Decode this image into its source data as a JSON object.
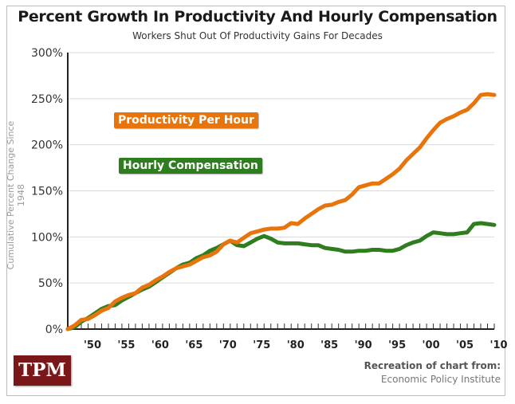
{
  "chart_data": {
    "type": "line",
    "title": "Percent Growth In Productivity And Hourly Compensation",
    "subtitle": "Workers Shut Out Of Productivity Gains For Decades",
    "xlabel": "",
    "ylabel": "Cumulative Percent Change Since 1948",
    "xlim": [
      1948,
      2011
    ],
    "ylim": [
      0,
      300
    ],
    "grid": true,
    "y_ticks": [
      0,
      50,
      100,
      150,
      200,
      250,
      300
    ],
    "y_tick_labels": [
      "0%",
      "50%",
      "100%",
      "150%",
      "200%",
      "250%",
      "300%"
    ],
    "x_ticks": [
      1950,
      1955,
      1960,
      1965,
      1970,
      1975,
      1980,
      1985,
      1990,
      1995,
      2000,
      2005,
      2010
    ],
    "x_tick_labels": [
      "'50",
      "'55",
      "'60",
      "'65",
      "'70",
      "'75",
      "'80",
      "'85",
      "'90",
      "'95",
      "'00",
      "'05",
      "'10"
    ],
    "legend_placement": "top-left (inline labels)",
    "series": [
      {
        "name": "Productivity Per Hour",
        "color": "#e8740c",
        "x": [
          1948,
          1949,
          1950,
          1951,
          1952,
          1953,
          1954,
          1955,
          1956,
          1957,
          1958,
          1959,
          1960,
          1961,
          1962,
          1963,
          1964,
          1965,
          1966,
          1967,
          1968,
          1969,
          1970,
          1971,
          1972,
          1973,
          1974,
          1975,
          1976,
          1977,
          1978,
          1979,
          1980,
          1981,
          1982,
          1983,
          1984,
          1985,
          1986,
          1987,
          1988,
          1989,
          1990,
          1991,
          1992,
          1993,
          1994,
          1995,
          1996,
          1997,
          1998,
          1999,
          2000,
          2001,
          2002,
          2003,
          2004,
          2005,
          2006,
          2007,
          2008,
          2009,
          2010,
          2011
        ],
        "values": [
          0,
          4,
          10,
          11,
          15,
          20,
          23,
          30,
          34,
          37,
          39,
          45,
          48,
          53,
          57,
          62,
          66,
          68,
          70,
          74,
          78,
          80,
          84,
          92,
          96,
          94,
          99,
          104,
          106,
          108,
          109,
          109,
          110,
          115,
          114,
          120,
          125,
          130,
          134,
          135,
          138,
          140,
          146,
          154,
          156,
          158,
          158,
          163,
          168,
          174,
          183,
          190,
          197,
          207,
          216,
          224,
          228,
          231,
          235,
          238,
          245,
          254,
          255,
          254
        ]
      },
      {
        "name": "Hourly Compensation",
        "color": "#2e7d1e",
        "x": [
          1948,
          1949,
          1950,
          1951,
          1952,
          1953,
          1954,
          1955,
          1956,
          1957,
          1958,
          1959,
          1960,
          1961,
          1962,
          1963,
          1964,
          1965,
          1966,
          1967,
          1968,
          1969,
          1970,
          1971,
          1972,
          1973,
          1974,
          1975,
          1976,
          1977,
          1978,
          1979,
          1980,
          1981,
          1982,
          1983,
          1984,
          1985,
          1986,
          1987,
          1988,
          1989,
          1990,
          1991,
          1992,
          1993,
          1994,
          1995,
          1996,
          1997,
          1998,
          1999,
          2000,
          2001,
          2002,
          2003,
          2004,
          2005,
          2006,
          2007,
          2008,
          2009,
          2010,
          2011
        ],
        "values": [
          0,
          2,
          8,
          12,
          17,
          22,
          25,
          26,
          31,
          35,
          39,
          43,
          46,
          51,
          56,
          61,
          66,
          70,
          72,
          77,
          80,
          85,
          88,
          92,
          96,
          91,
          90,
          94,
          98,
          101,
          98,
          94,
          93,
          93,
          93,
          92,
          91,
          91,
          88,
          87,
          86,
          84,
          84,
          85,
          85,
          86,
          86,
          85,
          85,
          87,
          91,
          94,
          96,
          101,
          105,
          104,
          103,
          103,
          104,
          105,
          114,
          115,
          114,
          113
        ]
      }
    ]
  },
  "legend": {
    "productivity_label": "Productivity Per Hour",
    "compensation_label": "Hourly Compensation"
  },
  "footer": {
    "logo": "TPM",
    "credit_line1": "Recreation of chart from:",
    "credit_line2": "Economic Policy Institute"
  }
}
